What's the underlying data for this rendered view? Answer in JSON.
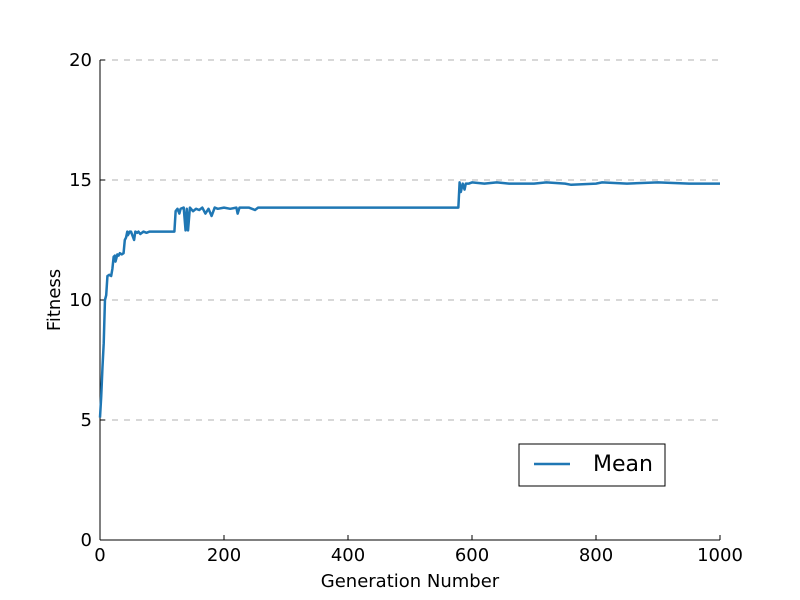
{
  "chart_data": {
    "type": "line",
    "title": "",
    "xlabel": "Generation Number",
    "ylabel": "Fitness",
    "xlim": [
      0,
      1000
    ],
    "ylim": [
      0,
      20
    ],
    "x_ticks": [
      0,
      200,
      400,
      600,
      800,
      1000
    ],
    "y_ticks": [
      0,
      5,
      10,
      15,
      20
    ],
    "x_tick_labels": [
      "0",
      "200",
      "400",
      "600",
      "800",
      "1000"
    ],
    "y_tick_labels": [
      "0",
      "5",
      "10",
      "15",
      "20"
    ],
    "grid": "y-dashed",
    "legend_position": "lower-right",
    "series": [
      {
        "name": "Mean",
        "color": "#1f77b4",
        "x": [
          0,
          2,
          4,
          6,
          8,
          10,
          12,
          15,
          18,
          20,
          22,
          24,
          25,
          28,
          30,
          32,
          35,
          38,
          40,
          42,
          44,
          45,
          48,
          50,
          55,
          57,
          60,
          62,
          65,
          70,
          75,
          80,
          85,
          90,
          100,
          110,
          120,
          122,
          125,
          128,
          130,
          135,
          138,
          140,
          142,
          145,
          150,
          155,
          160,
          165,
          170,
          175,
          180,
          185,
          190,
          200,
          210,
          220,
          222,
          225,
          230,
          240,
          250,
          255,
          260,
          270,
          300,
          400,
          500,
          578,
          580,
          582,
          585,
          588,
          590,
          595,
          600,
          620,
          640,
          660,
          700,
          720,
          750,
          760,
          800,
          810,
          850,
          900,
          950,
          1000
        ],
        "y": [
          5.1,
          6.0,
          7.2,
          8.2,
          10.0,
          10.2,
          11.0,
          11.05,
          11.0,
          11.3,
          11.8,
          11.85,
          11.6,
          11.9,
          11.85,
          11.95,
          11.9,
          11.95,
          12.5,
          12.6,
          12.85,
          12.7,
          12.85,
          12.85,
          12.5,
          12.85,
          12.8,
          12.85,
          12.75,
          12.85,
          12.8,
          12.85,
          12.85,
          12.85,
          12.85,
          12.85,
          12.85,
          13.7,
          13.8,
          13.6,
          13.8,
          13.85,
          12.9,
          13.8,
          12.9,
          13.85,
          13.7,
          13.8,
          13.75,
          13.85,
          13.6,
          13.8,
          13.5,
          13.85,
          13.8,
          13.85,
          13.8,
          13.85,
          13.6,
          13.85,
          13.85,
          13.85,
          13.75,
          13.85,
          13.85,
          13.85,
          13.85,
          13.85,
          13.85,
          13.85,
          14.9,
          14.5,
          14.85,
          14.6,
          14.85,
          14.85,
          14.9,
          14.85,
          14.9,
          14.85,
          14.85,
          14.9,
          14.85,
          14.8,
          14.85,
          14.9,
          14.85,
          14.9,
          14.85,
          14.85
        ]
      }
    ]
  }
}
